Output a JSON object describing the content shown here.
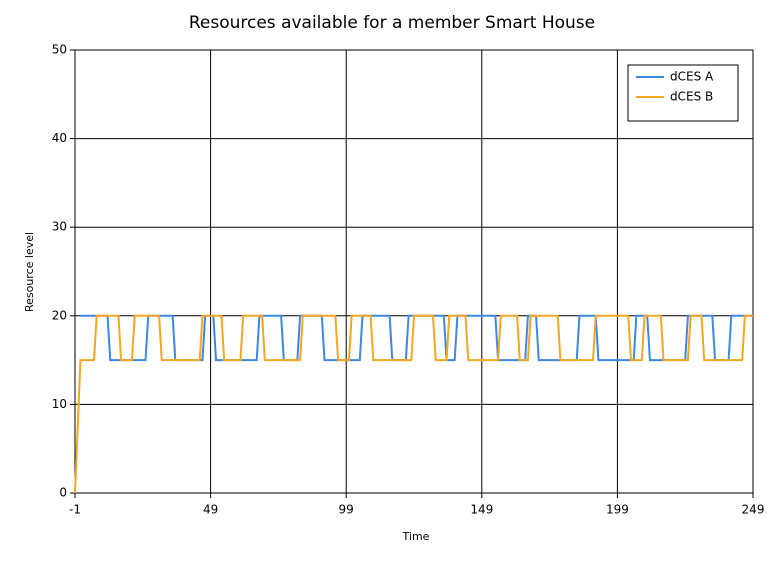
{
  "chart_data": {
    "type": "line",
    "title": "Resources available for a member Smart House",
    "x_label": "Time",
    "y_label": "Resource level",
    "xlim": [
      -1,
      249
    ],
    "xticks": [
      -1,
      49,
      99,
      149,
      199,
      249
    ],
    "ylim": [
      0,
      50
    ],
    "yticks": [
      0,
      10,
      20,
      30,
      40,
      50
    ],
    "grid": true,
    "legend": "top-right",
    "series": [
      {
        "name": "dCES A",
        "color": "#3f88e0",
        "x": [
          1,
          11,
          12,
          25,
          26,
          35,
          36,
          46,
          47,
          50,
          51,
          66,
          67,
          75,
          76,
          81,
          82,
          90,
          91,
          104,
          105,
          115,
          116,
          121,
          122,
          135,
          136,
          139,
          140,
          154,
          155,
          165,
          166,
          169,
          170,
          184,
          185,
          191,
          192,
          205,
          206,
          210,
          211,
          224,
          225,
          234,
          235,
          240,
          241,
          249
        ],
        "values": [
          20,
          20,
          15,
          15,
          20,
          20,
          15,
          15,
          20,
          20,
          15,
          15,
          20,
          20,
          15,
          15,
          20,
          20,
          15,
          15,
          20,
          20,
          15,
          15,
          20,
          20,
          15,
          15,
          20,
          20,
          15,
          15,
          20,
          20,
          15,
          15,
          20,
          20,
          15,
          15,
          20,
          20,
          15,
          15,
          20,
          20,
          15,
          15,
          20,
          20
        ]
      },
      {
        "name": "dCES B",
        "color": "#f5a623",
        "x": [
          -1,
          1,
          6,
          7,
          15,
          16,
          20,
          21,
          30,
          31,
          45,
          46,
          53,
          54,
          60,
          61,
          68,
          69,
          82,
          83,
          95,
          96,
          100,
          101,
          108,
          109,
          123,
          124,
          131,
          132,
          136,
          137,
          143,
          144,
          155,
          156,
          162,
          163,
          166,
          167,
          177,
          178,
          190,
          191,
          203,
          204,
          208,
          209,
          215,
          216,
          225,
          226,
          230,
          231,
          245,
          246,
          249
        ],
        "values": [
          0,
          15,
          15,
          20,
          20,
          15,
          15,
          20,
          20,
          15,
          15,
          20,
          20,
          15,
          15,
          20,
          20,
          15,
          15,
          20,
          20,
          15,
          15,
          20,
          20,
          15,
          15,
          20,
          20,
          15,
          15,
          20,
          20,
          15,
          15,
          20,
          20,
          15,
          15,
          20,
          20,
          15,
          15,
          20,
          20,
          15,
          15,
          20,
          20,
          15,
          15,
          20,
          20,
          15,
          15,
          20,
          20
        ]
      }
    ]
  }
}
